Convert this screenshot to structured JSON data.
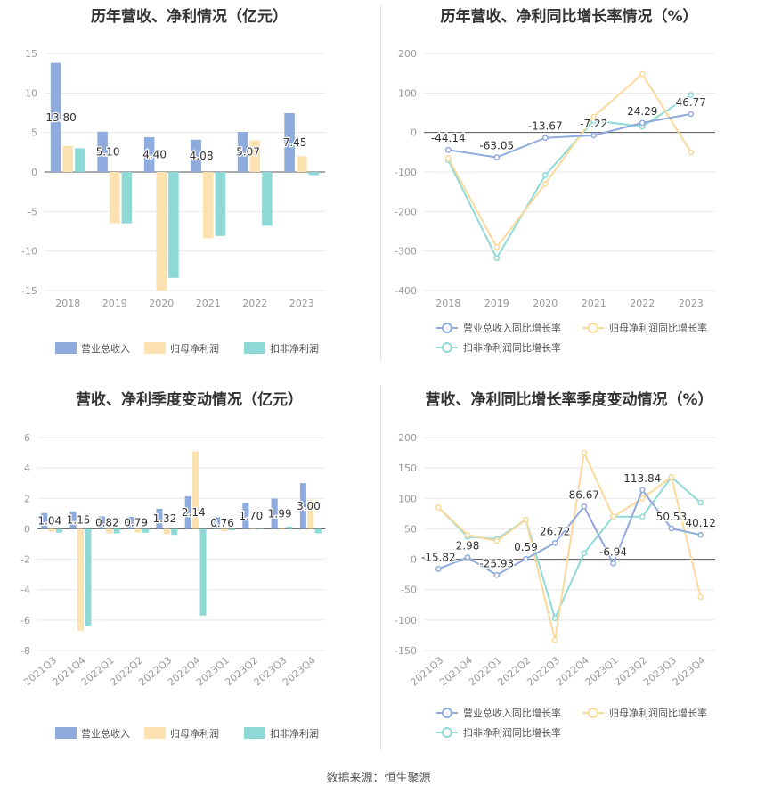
{
  "colors": {
    "revenue": "#8faadc",
    "net_profit": "#fde2b1",
    "deducted_profit": "#8ed8d6",
    "revenue_line": "#8faadc",
    "net_profit_line": "#fcd99b",
    "deducted_profit_line": "#8fdad7",
    "grid": "#e8e8e8",
    "axis_text": "#999999",
    "label_text": "#333333"
  },
  "footer": "数据来源：恒生聚源",
  "chart_data": [
    {
      "id": "annual-bar",
      "type": "bar",
      "title": "历年营收、净利情况（亿元）",
      "categories": [
        "2018",
        "2019",
        "2020",
        "2021",
        "2022",
        "2023"
      ],
      "ylim": [
        -15,
        15
      ],
      "yticks": [
        15,
        10,
        5,
        0,
        -5,
        -10,
        -15
      ],
      "series": [
        {
          "name": "营业总收入",
          "color_key": "revenue",
          "values": [
            13.8,
            5.1,
            4.4,
            4.08,
            5.07,
            7.45
          ],
          "labels": [
            "13.80",
            "5.10",
            "4.40",
            "4.08",
            "5.07",
            "7.45"
          ]
        },
        {
          "name": "归母净利润",
          "color_key": "net_profit",
          "values": [
            3.3,
            -6.5,
            -15.0,
            -8.4,
            4.0,
            2.0
          ]
        },
        {
          "name": "扣非净利润",
          "color_key": "deducted_profit",
          "values": [
            3.0,
            -6.5,
            -13.4,
            -8.1,
            -6.8,
            -0.4
          ]
        }
      ]
    },
    {
      "id": "annual-line",
      "type": "line",
      "title": "历年营收、净利同比增长率情况（%）",
      "categories": [
        "2018",
        "2019",
        "2020",
        "2021",
        "2022",
        "2023"
      ],
      "ylim": [
        -400,
        200
      ],
      "yticks": [
        200,
        100,
        0,
        -100,
        -200,
        -300,
        -400
      ],
      "series": [
        {
          "name": "营业总收入同比增长率",
          "color_key": "revenue_line",
          "values": [
            -44.14,
            -63.05,
            -13.67,
            -7.22,
            24.29,
            46.77
          ],
          "labels": [
            "-44.14",
            "-63.05",
            "-13.67",
            "-7.22",
            "24.29",
            "46.77"
          ]
        },
        {
          "name": "归母净利润同比增长率",
          "color_key": "net_profit_line",
          "values": [
            -65,
            -290,
            -130,
            40,
            148,
            -50
          ]
        },
        {
          "name": "扣非净利润同比增长率",
          "color_key": "deducted_profit_line",
          "values": [
            -70,
            -318,
            -108,
            30,
            15,
            95
          ]
        }
      ]
    },
    {
      "id": "quarter-bar",
      "type": "bar",
      "title": "营收、净利季度变动情况（亿元）",
      "categories": [
        "2021Q3",
        "2021Q4",
        "2022Q1",
        "2022Q2",
        "2022Q3",
        "2022Q4",
        "2023Q1",
        "2023Q2",
        "2023Q3",
        "2023Q4"
      ],
      "ylim": [
        -8,
        6
      ],
      "yticks": [
        6,
        4,
        2,
        0,
        -2,
        -4,
        -6,
        -8
      ],
      "series": [
        {
          "name": "营业总收入",
          "color_key": "revenue",
          "values": [
            1.04,
            1.15,
            0.82,
            0.79,
            1.32,
            2.14,
            0.76,
            1.7,
            1.99,
            3.0
          ],
          "labels": [
            "1.04",
            "1.15",
            "0.82",
            "0.79",
            "1.32",
            "2.14",
            "0.76",
            "1.70",
            "1.99",
            "3.00"
          ]
        },
        {
          "name": "归母净利润",
          "color_key": "net_profit",
          "values": [
            -0.2,
            -6.7,
            -0.3,
            -0.25,
            -0.35,
            5.1,
            -0.15,
            0.05,
            0.1,
            1.9
          ]
        },
        {
          "name": "扣非净利润",
          "color_key": "deducted_profit",
          "values": [
            -0.25,
            -6.4,
            -0.3,
            -0.25,
            -0.4,
            -5.7,
            -0.1,
            0.0,
            0.15,
            -0.3
          ]
        }
      ]
    },
    {
      "id": "quarter-line",
      "type": "line",
      "title": "营收、净利同比增长率季度变动情况（%）",
      "categories": [
        "2021Q3",
        "2021Q4",
        "2022Q1",
        "2022Q2",
        "2022Q3",
        "2022Q4",
        "2023Q1",
        "2023Q2",
        "2023Q3",
        "2023Q4"
      ],
      "ylim": [
        -150,
        200
      ],
      "yticks": [
        200,
        150,
        100,
        50,
        0,
        -50,
        -100,
        -150
      ],
      "series": [
        {
          "name": "营业总收入同比增长率",
          "color_key": "revenue_line",
          "values": [
            -15.82,
            2.98,
            -25.93,
            0.59,
            26.72,
            86.67,
            -6.94,
            113.84,
            50.53,
            40.12
          ],
          "labels": [
            "-15.82",
            "2.98",
            "-25.93",
            "0.59",
            "26.72",
            "86.67",
            "-6.94",
            "113.84",
            "50.53",
            "40.12"
          ]
        },
        {
          "name": "归母净利润同比增长率",
          "color_key": "net_profit_line",
          "values": [
            85,
            40,
            30,
            65,
            -133,
            175,
            70,
            100,
            135,
            -62
          ]
        },
        {
          "name": "扣非净利润同比增长率",
          "color_key": "deducted_profit_line",
          "values": [
            85,
            37,
            33,
            65,
            -97,
            10,
            70,
            70,
            135,
            93
          ]
        }
      ]
    }
  ]
}
